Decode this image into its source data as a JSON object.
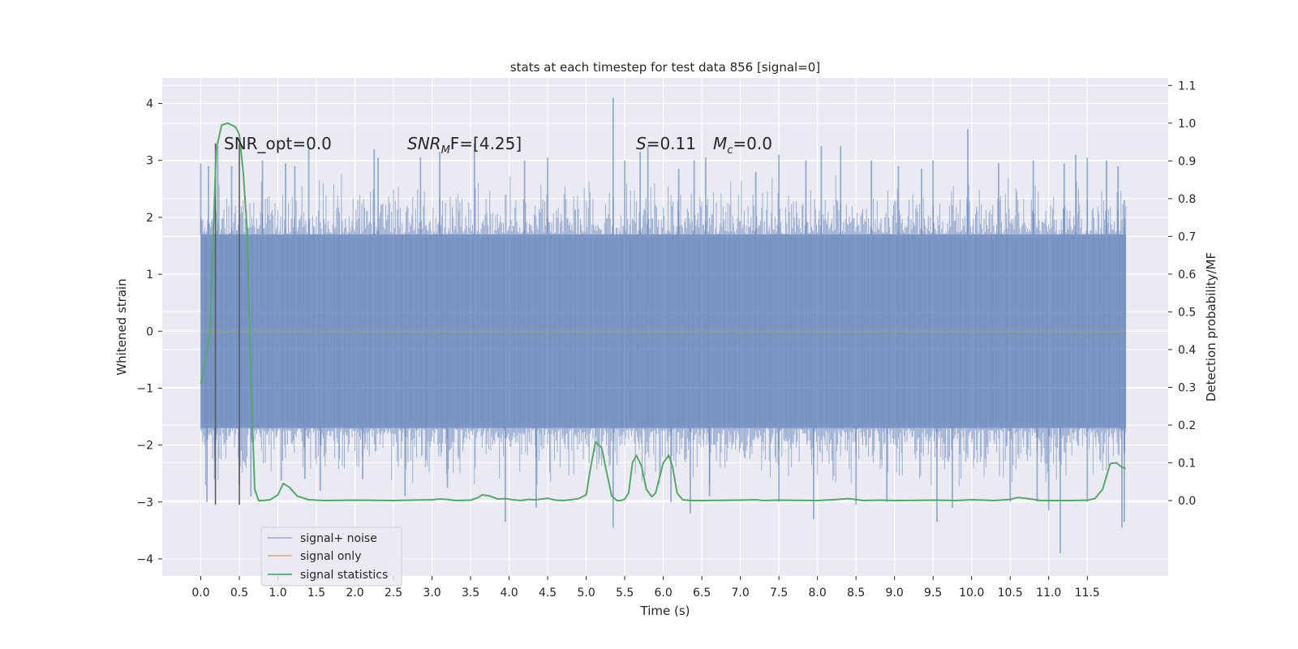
{
  "chart_data": {
    "type": "line",
    "title": "stats at each timestep for test data 856 [signal=0]",
    "xlabel": "Time (s)",
    "ylabel": "Whitened strain",
    "y2label": "Detection probability/MF",
    "xlim": [
      -0.5,
      12.55
    ],
    "ylim": [
      -4.3,
      4.45
    ],
    "y2lim": [
      -0.2,
      1.12
    ],
    "xticks": [
      "0.0",
      "0.5",
      "1.0",
      "1.5",
      "2.0",
      "2.5",
      "3.0",
      "3.5",
      "4.0",
      "4.5",
      "5.0",
      "5.5",
      "6.0",
      "6.5",
      "7.0",
      "7.5",
      "8.0",
      "8.5",
      "9.0",
      "9.5",
      "10.0",
      "10.5",
      "11.0",
      "11.5"
    ],
    "yticks": [
      "4",
      "3",
      "2",
      "1",
      "0",
      "−1",
      "−2",
      "−3",
      "−4"
    ],
    "y2ticks": [
      "1.1",
      "1.0",
      "0.9",
      "0.8",
      "0.7",
      "0.6",
      "0.5",
      "0.4",
      "0.3",
      "0.2",
      "0.1",
      "0.0"
    ],
    "grid": true,
    "legend_position": "lower-left",
    "annotations": {
      "snr_opt": "SNR_opt=0.0",
      "snr_mf_prefix": "SNR",
      "snr_mf_sub": "M",
      "snr_mf_suffix": "F=[4.25]",
      "s_label": "S",
      "s_value": "=0.11",
      "mc_label": "M",
      "mc_sub": "c",
      "mc_value": "=0.0"
    },
    "vertical_markers": [
      0.19,
      0.5
    ],
    "series": [
      {
        "name": "signal+ noise",
        "axis": "left",
        "color": "#4c72b0",
        "noise_band": {
          "x_start": 0.0,
          "x_end": 12.0,
          "core_min": -1.7,
          "core_max": 1.7
        },
        "peaks_up": [
          [
            0.0,
            2.95
          ],
          [
            0.1,
            2.9
          ],
          [
            0.22,
            3.25
          ],
          [
            0.4,
            2.9
          ],
          [
            0.8,
            3.0
          ],
          [
            1.1,
            2.95
          ],
          [
            1.22,
            2.9
          ],
          [
            1.4,
            3.25
          ],
          [
            2.25,
            3.2
          ],
          [
            2.3,
            3.05
          ],
          [
            2.85,
            3.05
          ],
          [
            3.1,
            3.15
          ],
          [
            3.55,
            3.3
          ],
          [
            4.2,
            3.0
          ],
          [
            4.5,
            3.05
          ],
          [
            5.35,
            4.1
          ],
          [
            5.5,
            3.0
          ],
          [
            5.7,
            3.15
          ],
          [
            5.8,
            3.25
          ],
          [
            6.2,
            2.85
          ],
          [
            6.4,
            3.0
          ],
          [
            6.55,
            3.05
          ],
          [
            7.2,
            2.8
          ],
          [
            7.5,
            3.1
          ],
          [
            7.85,
            3.0
          ],
          [
            8.05,
            3.25
          ],
          [
            8.3,
            3.25
          ],
          [
            8.7,
            3.0
          ],
          [
            9.05,
            2.9
          ],
          [
            9.35,
            2.85
          ],
          [
            9.5,
            3.0
          ],
          [
            9.95,
            3.55
          ],
          [
            10.35,
            2.95
          ],
          [
            10.8,
            3.0
          ],
          [
            11.2,
            2.95
          ],
          [
            11.35,
            3.1
          ],
          [
            11.5,
            3.05
          ],
          [
            11.75,
            3.0
          ],
          [
            11.9,
            2.9
          ],
          [
            11.98,
            2.3
          ]
        ],
        "peaks_down": [
          [
            0.08,
            -3.0
          ],
          [
            0.18,
            -2.6
          ],
          [
            0.5,
            -2.7
          ],
          [
            0.65,
            -2.9
          ],
          [
            1.35,
            -2.6
          ],
          [
            1.55,
            -2.8
          ],
          [
            2.1,
            -2.6
          ],
          [
            2.65,
            -2.9
          ],
          [
            3.2,
            -2.75
          ],
          [
            3.95,
            -3.35
          ],
          [
            4.35,
            -3.1
          ],
          [
            5.35,
            -3.45
          ],
          [
            6.1,
            -3.0
          ],
          [
            6.35,
            -3.2
          ],
          [
            6.6,
            -2.9
          ],
          [
            7.5,
            -3.0
          ],
          [
            7.95,
            -3.3
          ],
          [
            8.5,
            -3.05
          ],
          [
            8.9,
            -3.0
          ],
          [
            9.55,
            -3.35
          ],
          [
            9.75,
            -3.1
          ],
          [
            10.5,
            -3.0
          ],
          [
            10.85,
            -3.0
          ],
          [
            11.0,
            -3.15
          ],
          [
            11.15,
            -3.9
          ],
          [
            11.5,
            -3.0
          ],
          [
            11.95,
            -3.45
          ],
          [
            11.98,
            -3.35
          ]
        ]
      },
      {
        "name": "signal only",
        "axis": "left",
        "color": "#dd8452",
        "x": [
          0.0,
          12.0
        ],
        "y": [
          0.0,
          0.0
        ]
      },
      {
        "name": "signal statistics",
        "axis": "right",
        "color": "#55a868",
        "x": [
          0.0,
          0.05,
          0.12,
          0.2,
          0.27,
          0.35,
          0.45,
          0.5,
          0.55,
          0.6,
          0.65,
          0.7,
          0.75,
          0.8,
          0.9,
          1.0,
          1.07,
          1.15,
          1.25,
          1.4,
          1.6,
          2.0,
          2.5,
          3.0,
          3.1,
          3.2,
          3.3,
          3.5,
          3.6,
          3.65,
          3.75,
          3.85,
          3.95,
          4.05,
          4.15,
          4.25,
          4.35,
          4.5,
          4.6,
          4.7,
          4.8,
          4.9,
          5.0,
          5.05,
          5.12,
          5.2,
          5.27,
          5.33,
          5.4,
          5.45,
          5.5,
          5.55,
          5.6,
          5.65,
          5.72,
          5.78,
          5.85,
          5.9,
          6.0,
          6.07,
          6.12,
          6.18,
          6.25,
          6.35,
          6.5,
          7.0,
          7.2,
          7.3,
          7.5,
          8.0,
          8.2,
          8.4,
          8.6,
          8.8,
          9.0,
          9.5,
          9.8,
          10.0,
          10.3,
          10.5,
          10.6,
          10.7,
          10.9,
          11.0,
          11.3,
          11.5,
          11.6,
          11.7,
          11.75,
          11.8,
          11.88,
          11.95,
          12.0
        ],
        "y": [
          0.31,
          0.36,
          0.45,
          0.93,
          0.995,
          1.0,
          0.99,
          0.97,
          0.87,
          0.72,
          0.32,
          0.03,
          0.0,
          0.0,
          0.002,
          0.015,
          0.045,
          0.035,
          0.012,
          0.002,
          0.0,
          0.001,
          0.0,
          0.002,
          0.004,
          0.003,
          0.0,
          0.001,
          0.008,
          0.015,
          0.012,
          0.004,
          0.005,
          0.002,
          0.0,
          0.003,
          0.002,
          0.006,
          0.001,
          0.0,
          0.002,
          0.005,
          0.015,
          0.08,
          0.155,
          0.14,
          0.07,
          0.012,
          0.0,
          0.0,
          0.004,
          0.02,
          0.1,
          0.12,
          0.09,
          0.03,
          0.01,
          0.02,
          0.1,
          0.12,
          0.09,
          0.02,
          0.002,
          0.0,
          0.0,
          0.001,
          0.002,
          0.0,
          0.001,
          0.0,
          0.002,
          0.005,
          0.0,
          0.001,
          0.0,
          0.001,
          0.0,
          0.002,
          0.0,
          0.003,
          0.008,
          0.006,
          0.0,
          0.0,
          0.0,
          0.001,
          0.005,
          0.03,
          0.065,
          0.098,
          0.1,
          0.088,
          0.085
        ]
      }
    ]
  }
}
